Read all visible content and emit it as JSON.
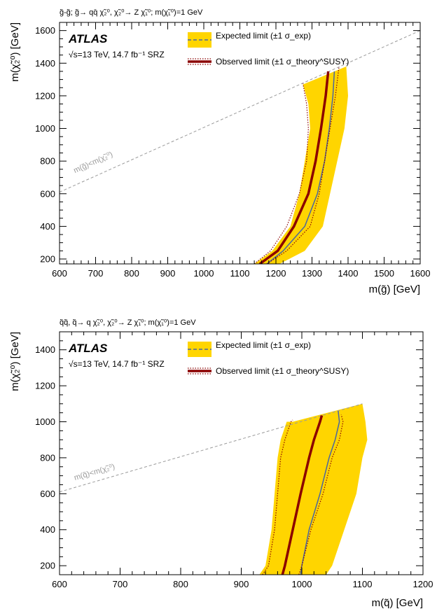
{
  "colors": {
    "band": "#ffd500",
    "observed": "#8b0000",
    "expected": "#4a66a0",
    "kinematic": "#9a9a9a"
  },
  "chart_data": [
    {
      "type": "line",
      "header": "g̃-g̃; g̃→ qq̄ χ̃₂⁰, χ̃₂⁰→ Z χ̃₁⁰; m(χ̃₁⁰)=1 GeV",
      "experiment": "ATLAS",
      "energy_label": "√s=13 TeV, 14.7 fb⁻¹ SRZ",
      "xlabel": "m(g̃) [GeV]",
      "ylabel": "m(χ̃₂⁰) [GeV]",
      "xlim": [
        600,
        1600
      ],
      "ylim": [
        170,
        1650
      ],
      "xticks": [
        600,
        700,
        800,
        900,
        1000,
        1100,
        1200,
        1300,
        1400,
        1500,
        1600
      ],
      "yticks": [
        200,
        400,
        600,
        800,
        1000,
        1200,
        1400,
        1600
      ],
      "legend": {
        "expected": "Expected limit (±1 σ_exp)",
        "observed": "Observed limit (±1 σ_theory^SUSY)",
        "placement": "top-center"
      },
      "kinematic_label": "m(g̃)<m(χ̃₂⁰)",
      "diagonal": {
        "x": [
          600,
          1600
        ],
        "y": [
          610,
          1600
        ]
      },
      "expected": {
        "x": [
          1175,
          1220,
          1280,
          1315,
          1335,
          1348,
          1358,
          1362
        ],
        "y": [
          170,
          250,
          400,
          600,
          800,
          1000,
          1200,
          1350
        ]
      },
      "expected_minus": {
        "x": [
          1210,
          1280,
          1330,
          1350,
          1370,
          1390,
          1400,
          1395
        ],
        "y": [
          170,
          250,
          400,
          600,
          800,
          1000,
          1200,
          1380
        ]
      },
      "expected_plus": {
        "x": [
          1140,
          1190,
          1240,
          1265,
          1280,
          1295,
          1290,
          1275
        ],
        "y": [
          170,
          250,
          400,
          600,
          800,
          1000,
          1150,
          1270
        ]
      },
      "observed": {
        "x": [
          1155,
          1205,
          1250,
          1290,
          1310,
          1325,
          1338,
          1345
        ],
        "y": [
          170,
          250,
          400,
          600,
          800,
          1000,
          1200,
          1350
        ]
      },
      "observed_up": {
        "x": [
          1140,
          1185,
          1230,
          1265,
          1285,
          1290,
          1285,
          1275
        ],
        "y": [
          170,
          250,
          400,
          600,
          800,
          1000,
          1150,
          1275
        ]
      },
      "observed_down": {
        "x": [
          1175,
          1230,
          1295,
          1320,
          1335,
          1350,
          1365,
          1375
        ],
        "y": [
          170,
          250,
          400,
          600,
          800,
          1000,
          1200,
          1380
        ]
      }
    },
    {
      "type": "line",
      "header": "q̃q̃, q̃→ q χ̃₂⁰, χ̃₂⁰→ Z χ̃₁⁰; m(χ̃₁⁰)=1 GeV",
      "experiment": "ATLAS",
      "energy_label": "√s=13 TeV, 14.7 fb⁻¹ SRZ",
      "xlabel": "m(q̃) [GeV]",
      "ylabel": "m(χ̃₂⁰) [GeV]",
      "xlim": [
        600,
        1200
      ],
      "ylim": [
        150,
        1500
      ],
      "xticks": [
        600,
        700,
        800,
        900,
        1000,
        1100,
        1200
      ],
      "yticks": [
        200,
        400,
        600,
        800,
        1000,
        1200,
        1400
      ],
      "legend": {
        "expected": "Expected limit (±1 σ_exp)",
        "observed": "Observed limit (±1 σ_theory^SUSY)",
        "placement": "top-center"
      },
      "kinematic_label": "m(q̃)<m(χ̃₂⁰)",
      "diagonal": {
        "x": [
          600,
          1100
        ],
        "y": [
          610,
          1100
        ]
      },
      "expected": {
        "x": [
          998,
          1000,
          1012,
          1030,
          1045,
          1055,
          1062,
          1060
        ],
        "y": [
          150,
          200,
          400,
          600,
          800,
          900,
          1000,
          1060
        ]
      },
      "expected_minus": {
        "x": [
          1040,
          1050,
          1070,
          1090,
          1100,
          1108,
          1105,
          1100
        ],
        "y": [
          150,
          200,
          400,
          600,
          800,
          900,
          1000,
          1100
        ]
      },
      "expected_plus": {
        "x": [
          930,
          940,
          950,
          955,
          960,
          965,
          975,
          985
        ],
        "y": [
          150,
          200,
          400,
          600,
          800,
          900,
          1000,
          1000
        ]
      },
      "observed": {
        "x": [
          968,
          972,
          985,
          998,
          1012,
          1020,
          1030,
          1033
        ],
        "y": [
          150,
          200,
          400,
          600,
          800,
          900,
          1000,
          1035
        ]
      },
      "observed_up": {
        "x": [
          935,
          945,
          955,
          960,
          965,
          972,
          982,
          985
        ],
        "y": [
          150,
          200,
          400,
          600,
          800,
          900,
          1000,
          1010
        ]
      },
      "observed_down": {
        "x": [
          995,
          1000,
          1015,
          1035,
          1050,
          1062,
          1068,
          1065
        ],
        "y": [
          150,
          200,
          400,
          600,
          800,
          900,
          1000,
          1040
        ]
      }
    }
  ]
}
